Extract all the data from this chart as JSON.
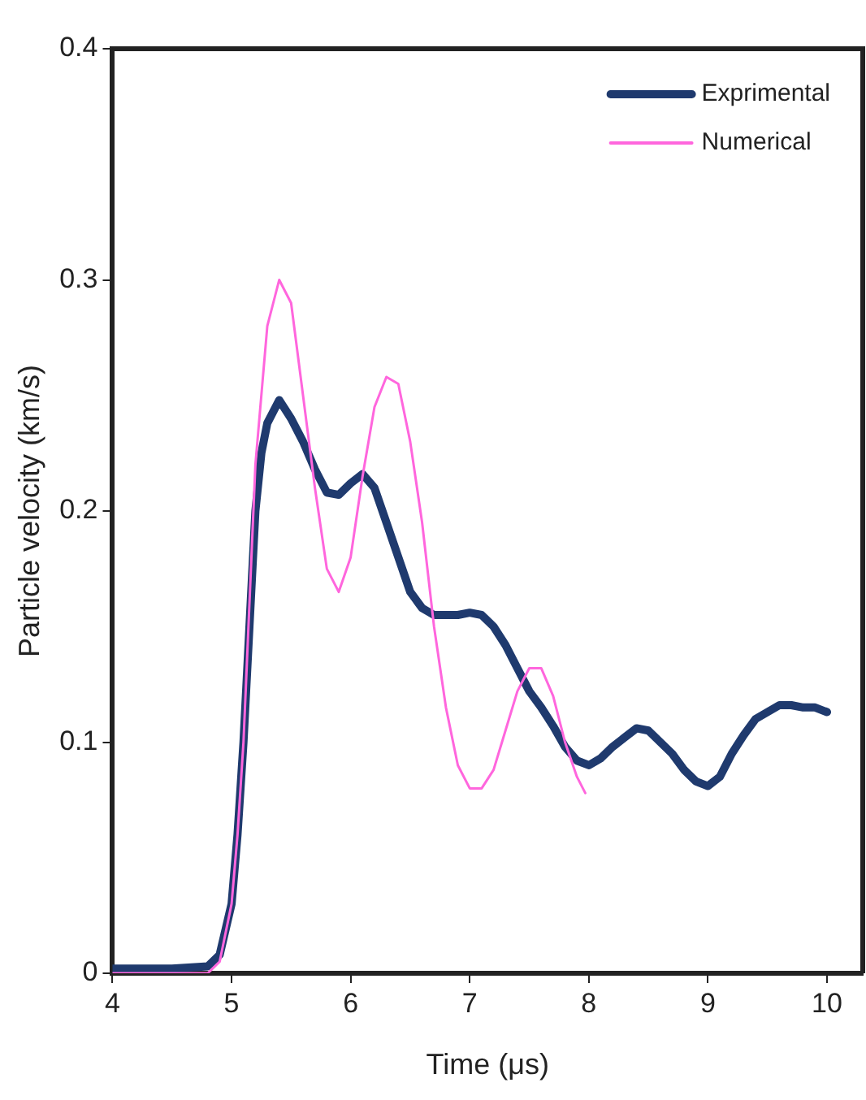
{
  "chart_data": {
    "type": "line",
    "xlabel": "Time (μs)",
    "ylabel": "Particle velocity (km/s)",
    "xlim": [
      4,
      10.3
    ],
    "xticks": [
      4,
      5,
      6,
      7,
      8,
      9,
      10
    ],
    "ylim": [
      0,
      0.4
    ],
    "yticks": [
      0,
      0.1,
      0.2,
      0.3,
      0.4
    ],
    "grid": false,
    "legend": "top right",
    "marker": "none",
    "line_style": "solid",
    "series": [
      {
        "name": "Exprimental",
        "color": "#1f3a6e",
        "x": [
          4.0,
          4.5,
          4.8,
          4.9,
          5.0,
          5.05,
          5.1,
          5.15,
          5.2,
          5.25,
          5.3,
          5.4,
          5.5,
          5.6,
          5.7,
          5.8,
          5.9,
          6.0,
          6.1,
          6.2,
          6.3,
          6.4,
          6.5,
          6.6,
          6.7,
          6.8,
          6.9,
          7.0,
          7.1,
          7.2,
          7.3,
          7.4,
          7.5,
          7.6,
          7.7,
          7.8,
          7.9,
          8.0,
          8.1,
          8.2,
          8.3,
          8.4,
          8.5,
          8.6,
          8.7,
          8.8,
          8.9,
          9.0,
          9.1,
          9.2,
          9.3,
          9.4,
          9.5,
          9.6,
          9.7,
          9.8,
          9.9,
          10.0
        ],
        "values": [
          0.002,
          0.002,
          0.003,
          0.008,
          0.03,
          0.06,
          0.1,
          0.15,
          0.2,
          0.225,
          0.238,
          0.248,
          0.24,
          0.23,
          0.218,
          0.208,
          0.207,
          0.212,
          0.216,
          0.21,
          0.195,
          0.18,
          0.165,
          0.158,
          0.155,
          0.155,
          0.155,
          0.156,
          0.155,
          0.15,
          0.142,
          0.132,
          0.122,
          0.115,
          0.107,
          0.098,
          0.092,
          0.09,
          0.093,
          0.098,
          0.102,
          0.106,
          0.105,
          0.1,
          0.095,
          0.088,
          0.083,
          0.081,
          0.085,
          0.095,
          0.103,
          0.11,
          0.113,
          0.116,
          0.116,
          0.115,
          0.115,
          0.113
        ]
      },
      {
        "name": "Numerical",
        "color": "#ff66dd",
        "x": [
          4.0,
          4.8,
          4.9,
          5.0,
          5.05,
          5.1,
          5.15,
          5.2,
          5.3,
          5.4,
          5.5,
          5.6,
          5.7,
          5.8,
          5.9,
          6.0,
          6.1,
          6.2,
          6.3,
          6.4,
          6.5,
          6.6,
          6.7,
          6.8,
          6.9,
          7.0,
          7.1,
          7.2,
          7.3,
          7.4,
          7.5,
          7.6,
          7.7,
          7.8,
          7.9,
          7.97
        ],
        "values": [
          0,
          0,
          0.005,
          0.03,
          0.06,
          0.1,
          0.16,
          0.22,
          0.28,
          0.3,
          0.29,
          0.25,
          0.21,
          0.175,
          0.165,
          0.18,
          0.215,
          0.245,
          0.258,
          0.255,
          0.23,
          0.195,
          0.15,
          0.115,
          0.09,
          0.08,
          0.08,
          0.088,
          0.105,
          0.122,
          0.132,
          0.132,
          0.12,
          0.1,
          0.085,
          0.078
        ]
      }
    ]
  }
}
